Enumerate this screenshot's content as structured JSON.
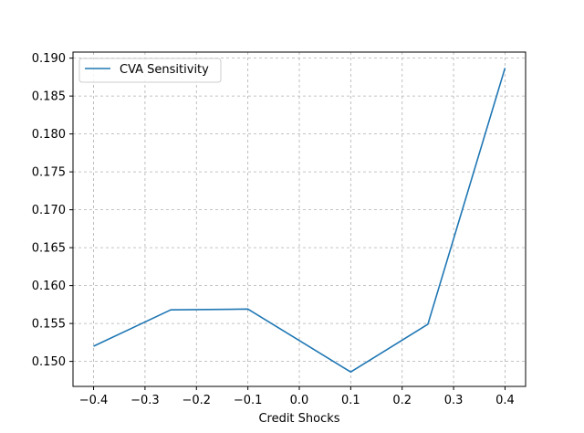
{
  "chart_data": {
    "type": "line",
    "title": "",
    "xlabel": "Credit Shocks",
    "ylabel": "",
    "xlim": [
      -0.44,
      0.44
    ],
    "ylim": [
      0.1467,
      0.1908
    ],
    "grid": true,
    "legend_position": "upper-left",
    "x_ticks": [
      -0.4,
      -0.3,
      -0.2,
      -0.1,
      0.0,
      0.1,
      0.2,
      0.3,
      0.4
    ],
    "x_tick_labels": [
      "−0.4",
      "−0.3",
      "−0.2",
      "−0.1",
      "0.0",
      "0.1",
      "0.2",
      "0.3",
      "0.4"
    ],
    "y_ticks": [
      0.15,
      0.155,
      0.16,
      0.165,
      0.17,
      0.175,
      0.18,
      0.185,
      0.19
    ],
    "y_tick_labels": [
      "0.150",
      "0.155",
      "0.160",
      "0.165",
      "0.170",
      "0.175",
      "0.180",
      "0.185",
      "0.190"
    ],
    "series": [
      {
        "name": "CVA Sensitivity",
        "color": "#1f77b4",
        "x": [
          -0.4,
          -0.25,
          -0.1,
          0.1,
          0.25,
          0.4
        ],
        "values": [
          0.152,
          0.1568,
          0.1569,
          0.1486,
          0.1549,
          0.1887
        ]
      }
    ]
  }
}
